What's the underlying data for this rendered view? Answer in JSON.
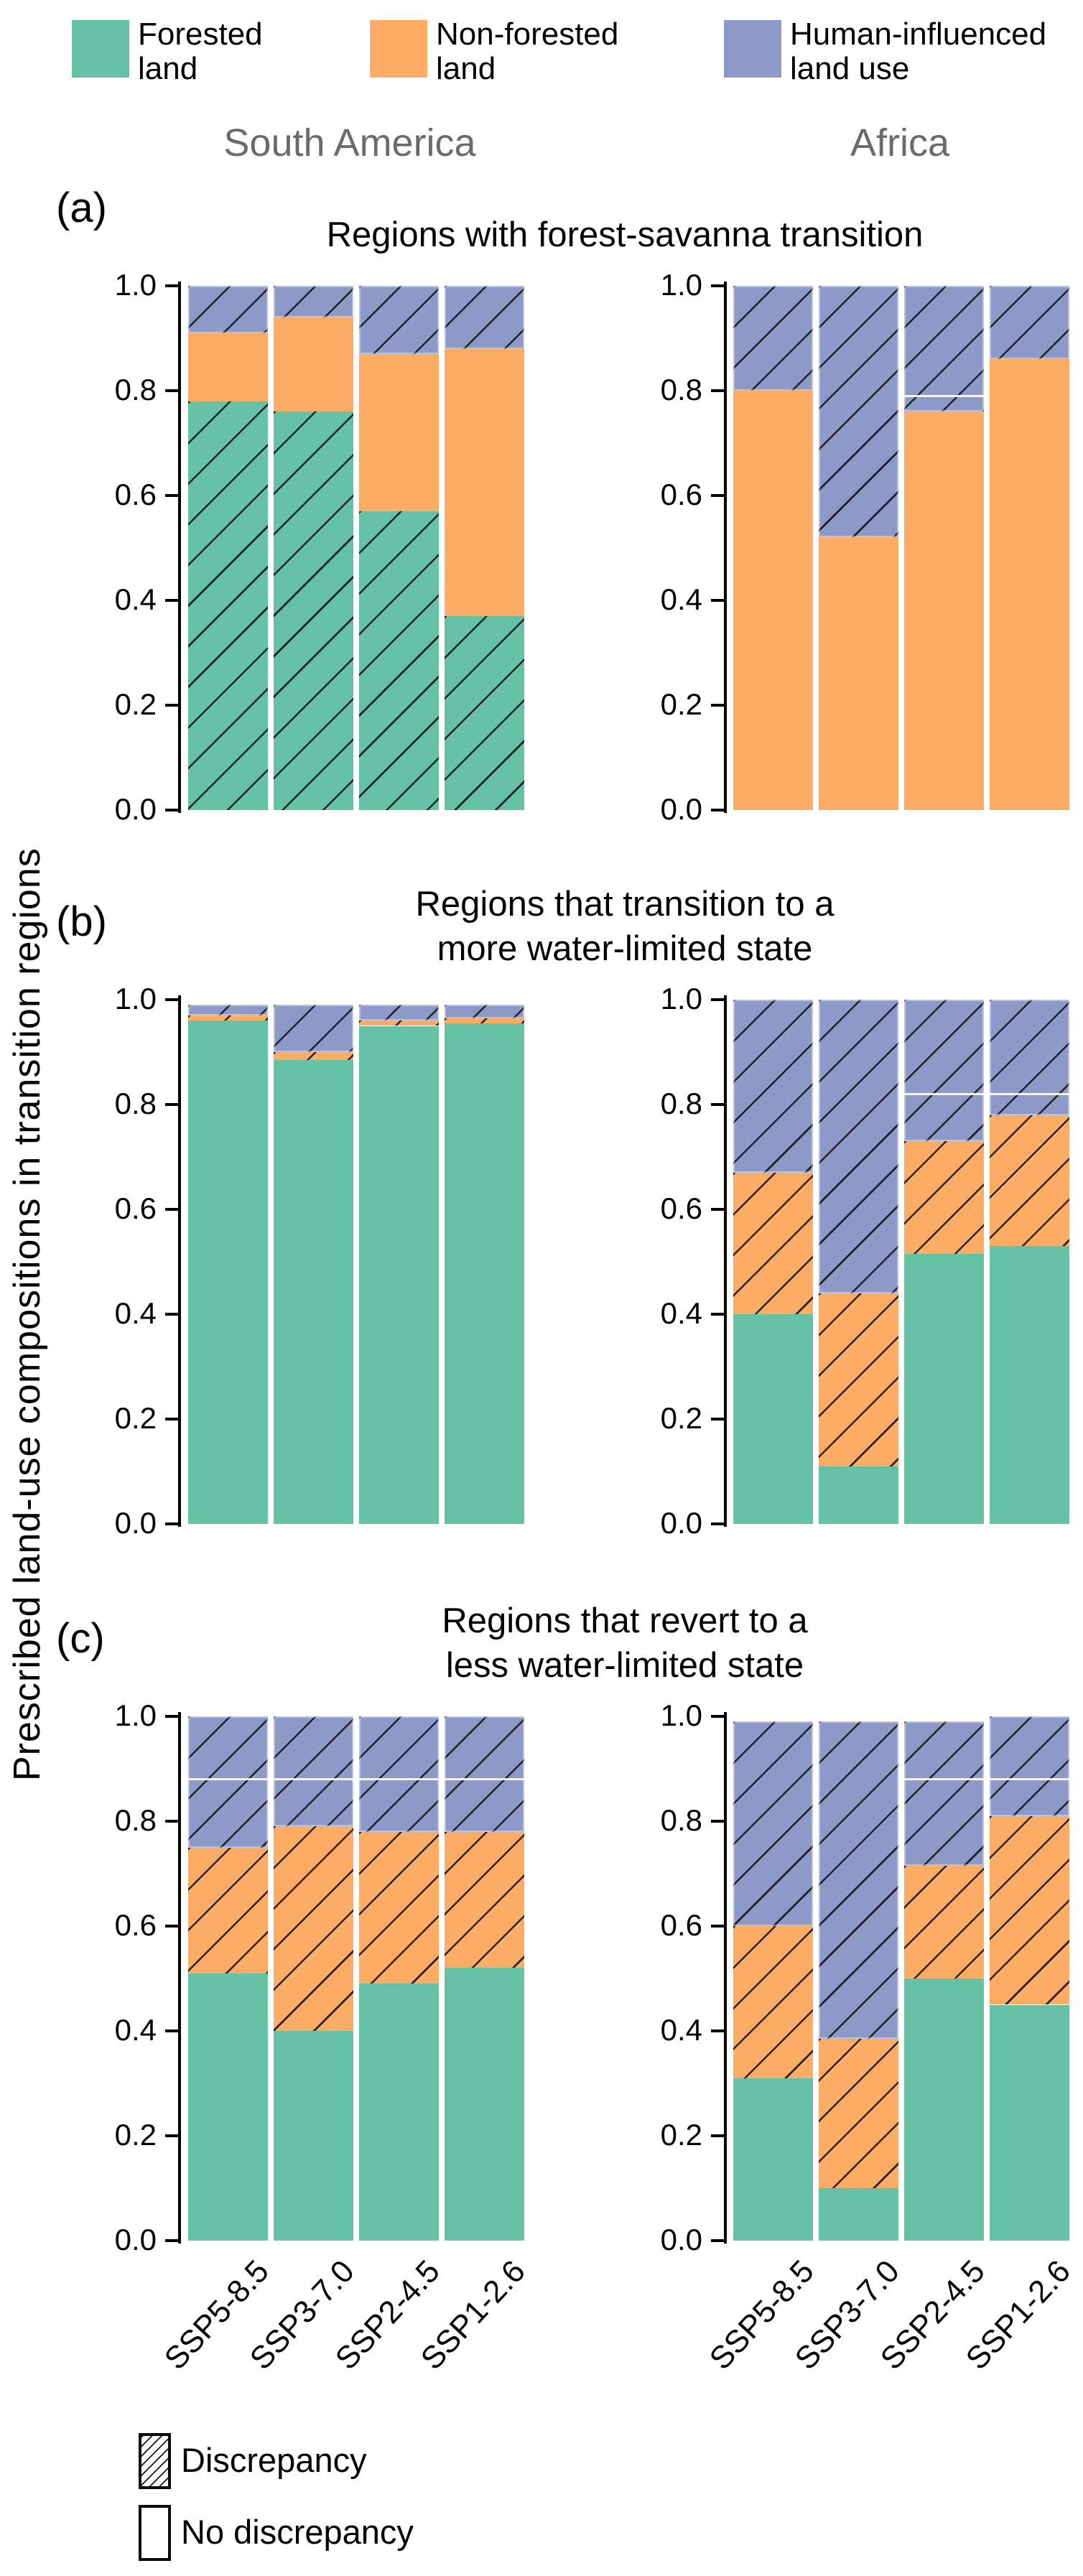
{
  "figure": {
    "y_axis_label": "Prescribed land-use compositions in transition regions",
    "column_headers": [
      "South America",
      "Africa"
    ]
  },
  "top_legend": {
    "items": [
      {
        "name": "forested-land",
        "label_lines": [
          "Forested",
          "land"
        ],
        "color": "#66c2a5"
      },
      {
        "name": "non-forested-land",
        "label_lines": [
          "Non-forested",
          "land"
        ],
        "color": "#fcac64"
      },
      {
        "name": "human-influenced-land-use",
        "label_lines": [
          "Human-influenced",
          "land use"
        ],
        "color": "#8d9ac8"
      }
    ]
  },
  "bottom_legend": {
    "items": [
      {
        "name": "discrepancy",
        "label": "Discrepancy",
        "hatched": true
      },
      {
        "name": "no-discrepancy",
        "label": "No discrepancy",
        "hatched": false
      }
    ]
  },
  "chart_data": {
    "type": "bar",
    "stacked": true,
    "ylim": [
      0,
      1
    ],
    "grid": false,
    "y_ticks": [
      "0.0",
      "0.2",
      "0.4",
      "0.6",
      "0.8",
      "1.0"
    ],
    "categories": [
      "SSP5-8.5",
      "SSP3-7.0",
      "SSP2-4.5",
      "SSP1-2.6"
    ],
    "segment_types": {
      "forested": {
        "label": "Forested land",
        "color": "#66c2a5"
      },
      "non_forested": {
        "label": "Non-forested land",
        "color": "#fcac64"
      },
      "human": {
        "label": "Human-influenced land use",
        "color": "#8d9ac8"
      }
    },
    "hatch_meaning": "Discrepancy",
    "plain_meaning": "No discrepancy",
    "panels": [
      {
        "panel_label": "(a)",
        "title_lines": [
          "Regions with forest-savanna transition"
        ],
        "regions": [
          {
            "name": "South America",
            "bars": [
              {
                "category": "SSP5-8.5",
                "segments": [
                  [
                    "forested",
                    0.78,
                    true
                  ],
                  [
                    "non_forested",
                    0.91,
                    false
                  ],
                  [
                    "human",
                    1.0,
                    true
                  ]
                ],
                "dividers": []
              },
              {
                "category": "SSP3-7.0",
                "segments": [
                  [
                    "forested",
                    0.76,
                    true
                  ],
                  [
                    "non_forested",
                    0.94,
                    false
                  ],
                  [
                    "human",
                    1.0,
                    true
                  ]
                ],
                "dividers": []
              },
              {
                "category": "SSP2-4.5",
                "segments": [
                  [
                    "forested",
                    0.57,
                    true
                  ],
                  [
                    "non_forested",
                    0.87,
                    false
                  ],
                  [
                    "human",
                    1.0,
                    true
                  ]
                ],
                "dividers": []
              },
              {
                "category": "SSP1-2.6",
                "segments": [
                  [
                    "forested",
                    0.37,
                    true
                  ],
                  [
                    "non_forested",
                    0.88,
                    false
                  ],
                  [
                    "human",
                    1.0,
                    true
                  ]
                ],
                "dividers": []
              }
            ]
          },
          {
            "name": "Africa",
            "bars": [
              {
                "category": "SSP5-8.5",
                "segments": [
                  [
                    "non_forested",
                    0.8,
                    false
                  ],
                  [
                    "human",
                    1.0,
                    true
                  ]
                ],
                "dividers": []
              },
              {
                "category": "SSP3-7.0",
                "segments": [
                  [
                    "non_forested",
                    0.52,
                    false
                  ],
                  [
                    "human",
                    1.0,
                    true
                  ]
                ],
                "dividers": []
              },
              {
                "category": "SSP2-4.5",
                "segments": [
                  [
                    "non_forested",
                    0.76,
                    false
                  ],
                  [
                    "human",
                    1.0,
                    true
                  ]
                ],
                "dividers": [
                  0.79
                ]
              },
              {
                "category": "SSP1-2.6",
                "segments": [
                  [
                    "non_forested",
                    0.86,
                    false
                  ],
                  [
                    "human",
                    1.0,
                    true
                  ]
                ],
                "dividers": []
              }
            ]
          }
        ]
      },
      {
        "panel_label": "(b)",
        "title_lines": [
          "Regions that transition to a",
          "more water-limited state"
        ],
        "regions": [
          {
            "name": "South America",
            "bars": [
              {
                "category": "SSP5-8.5",
                "segments": [
                  [
                    "forested",
                    0.96,
                    false
                  ],
                  [
                    "non_forested",
                    0.97,
                    true
                  ],
                  [
                    "human",
                    0.99,
                    true
                  ]
                ],
                "dividers": []
              },
              {
                "category": "SSP3-7.0",
                "segments": [
                  [
                    "forested",
                    0.885,
                    false
                  ],
                  [
                    "non_forested",
                    0.9,
                    true
                  ],
                  [
                    "human",
                    0.99,
                    true
                  ]
                ],
                "dividers": []
              },
              {
                "category": "SSP2-4.5",
                "segments": [
                  [
                    "forested",
                    0.95,
                    false
                  ],
                  [
                    "non_forested",
                    0.96,
                    true
                  ],
                  [
                    "human",
                    0.99,
                    true
                  ]
                ],
                "dividers": []
              },
              {
                "category": "SSP1-2.6",
                "segments": [
                  [
                    "forested",
                    0.955,
                    false
                  ],
                  [
                    "non_forested",
                    0.965,
                    true
                  ],
                  [
                    "human",
                    0.99,
                    true
                  ]
                ],
                "dividers": []
              }
            ]
          },
          {
            "name": "Africa",
            "bars": [
              {
                "category": "SSP5-8.5",
                "segments": [
                  [
                    "forested",
                    0.4,
                    false
                  ],
                  [
                    "non_forested",
                    0.67,
                    true
                  ],
                  [
                    "human",
                    1.0,
                    true
                  ]
                ],
                "dividers": []
              },
              {
                "category": "SSP3-7.0",
                "segments": [
                  [
                    "forested",
                    0.11,
                    false
                  ],
                  [
                    "non_forested",
                    0.44,
                    true
                  ],
                  [
                    "human",
                    1.0,
                    true
                  ]
                ],
                "dividers": []
              },
              {
                "category": "SSP2-4.5",
                "segments": [
                  [
                    "forested",
                    0.515,
                    false
                  ],
                  [
                    "non_forested",
                    0.73,
                    true
                  ],
                  [
                    "human",
                    1.0,
                    true
                  ]
                ],
                "dividers": [
                  0.82
                ]
              },
              {
                "category": "SSP1-2.6",
                "segments": [
                  [
                    "forested",
                    0.53,
                    false
                  ],
                  [
                    "non_forested",
                    0.78,
                    true
                  ],
                  [
                    "human",
                    1.0,
                    true
                  ]
                ],
                "dividers": [
                  0.82
                ]
              }
            ]
          }
        ]
      },
      {
        "panel_label": "(c)",
        "title_lines": [
          "Regions that revert to a",
          "less water-limited state"
        ],
        "regions": [
          {
            "name": "South America",
            "bars": [
              {
                "category": "SSP5-8.5",
                "segments": [
                  [
                    "forested",
                    0.51,
                    false
                  ],
                  [
                    "non_forested",
                    0.75,
                    true
                  ],
                  [
                    "human",
                    1.0,
                    true
                  ]
                ],
                "dividers": [
                  0.88
                ]
              },
              {
                "category": "SSP3-7.0",
                "segments": [
                  [
                    "forested",
                    0.4,
                    false
                  ],
                  [
                    "non_forested",
                    0.79,
                    true
                  ],
                  [
                    "human",
                    1.0,
                    true
                  ]
                ],
                "dividers": [
                  0.88
                ]
              },
              {
                "category": "SSP2-4.5",
                "segments": [
                  [
                    "forested",
                    0.49,
                    false
                  ],
                  [
                    "non_forested",
                    0.78,
                    true
                  ],
                  [
                    "human",
                    1.0,
                    true
                  ]
                ],
                "dividers": [
                  0.88
                ]
              },
              {
                "category": "SSP1-2.6",
                "segments": [
                  [
                    "forested",
                    0.52,
                    false
                  ],
                  [
                    "non_forested",
                    0.78,
                    true
                  ],
                  [
                    "human",
                    1.0,
                    true
                  ]
                ],
                "dividers": [
                  0.88
                ]
              }
            ]
          },
          {
            "name": "Africa",
            "bars": [
              {
                "category": "SSP5-8.5",
                "segments": [
                  [
                    "forested",
                    0.31,
                    false
                  ],
                  [
                    "non_forested",
                    0.6,
                    true
                  ],
                  [
                    "human",
                    0.99,
                    true
                  ]
                ],
                "dividers": []
              },
              {
                "category": "SSP3-7.0",
                "segments": [
                  [
                    "forested",
                    0.1,
                    false
                  ],
                  [
                    "non_forested",
                    0.385,
                    true
                  ],
                  [
                    "human",
                    0.99,
                    true
                  ]
                ],
                "dividers": []
              },
              {
                "category": "SSP2-4.5",
                "segments": [
                  [
                    "forested",
                    0.5,
                    false
                  ],
                  [
                    "non_forested",
                    0.715,
                    true
                  ],
                  [
                    "human",
                    0.99,
                    true
                  ]
                ],
                "dividers": [
                  0.88
                ]
              },
              {
                "category": "SSP1-2.6",
                "segments": [
                  [
                    "forested",
                    0.45,
                    false
                  ],
                  [
                    "non_forested",
                    0.81,
                    true
                  ],
                  [
                    "human",
                    1.0,
                    true
                  ]
                ],
                "dividers": [
                  0.88
                ]
              }
            ]
          }
        ]
      }
    ]
  }
}
